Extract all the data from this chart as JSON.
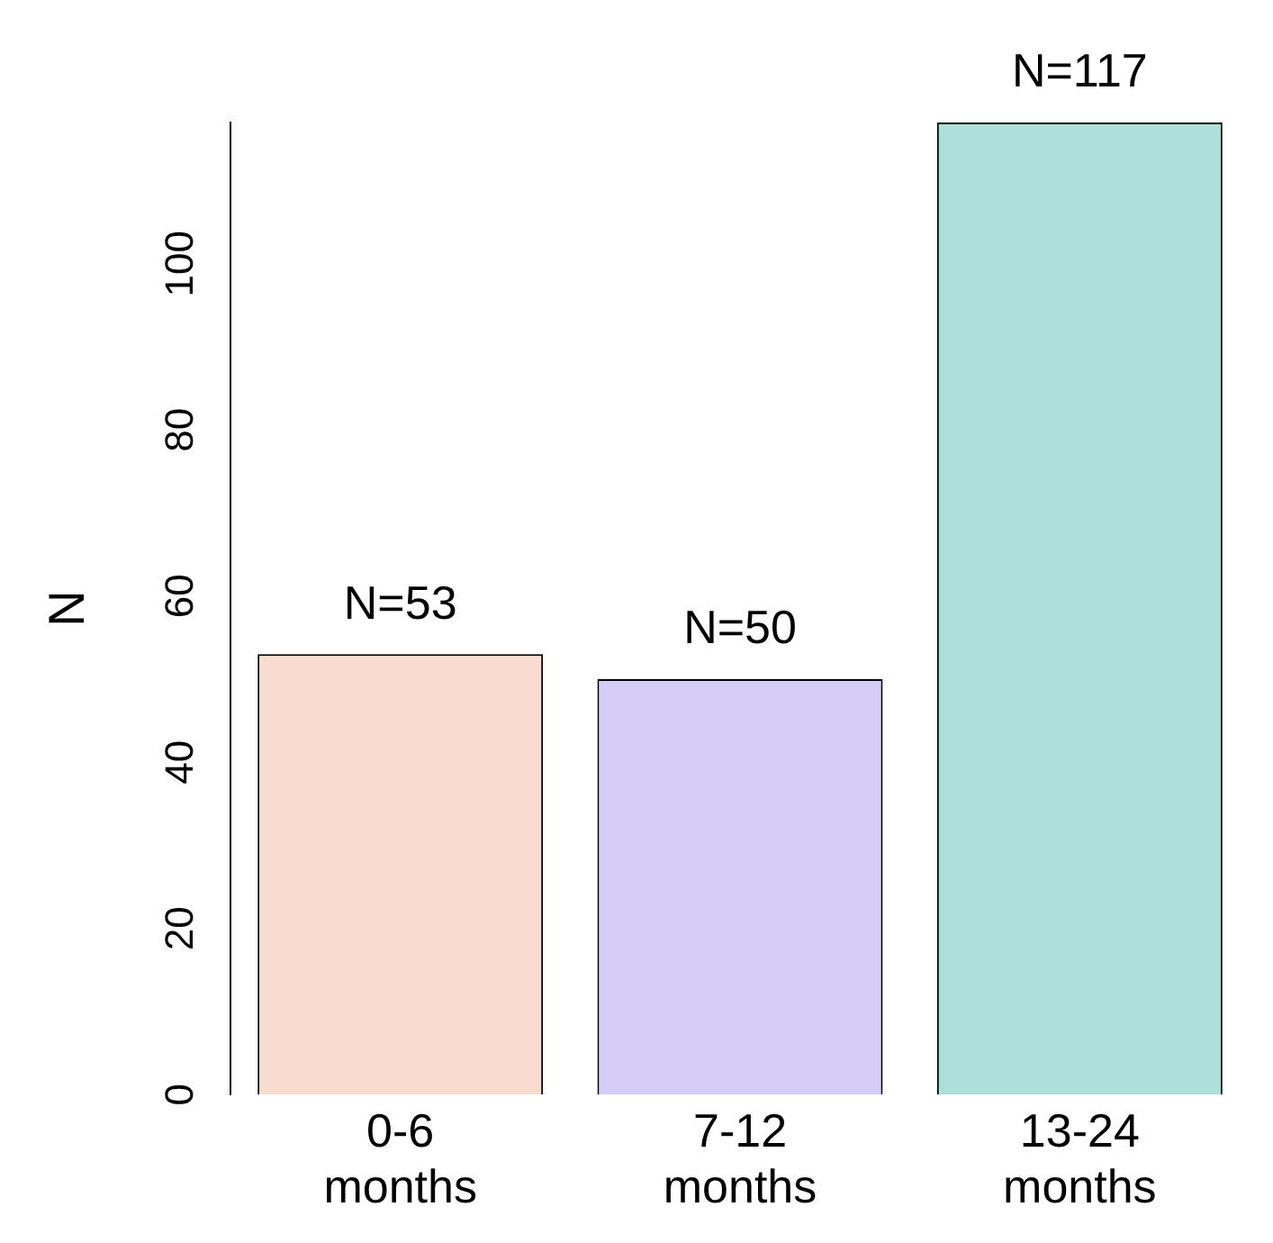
{
  "chart_data": {
    "type": "bar",
    "ylabel": "N",
    "categories": [
      "0-6 months",
      "7-12 months",
      "13-24 months"
    ],
    "values": [
      53,
      50,
      117
    ],
    "value_labels": [
      "N=53",
      "N=50",
      "N=117"
    ],
    "colors": [
      "#f9dccf",
      "#d5cdf5",
      "#aee0db"
    ],
    "ylim": [
      0,
      117
    ],
    "yticks": [
      0,
      20,
      40,
      60,
      80,
      100
    ],
    "grid": false,
    "legend": false
  }
}
